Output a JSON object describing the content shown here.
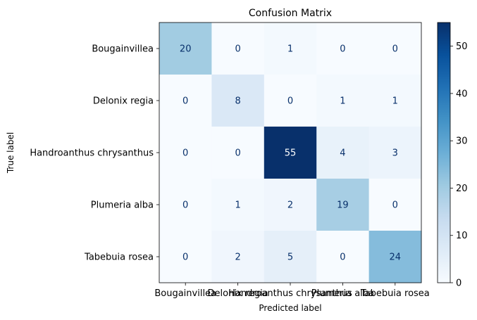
{
  "chart_data": {
    "type": "heatmap",
    "title": "Confusion Matrix",
    "xlabel": "Predicted label",
    "ylabel": "True label",
    "x_categories": [
      "Bougainvillea",
      "Delonix regia",
      "Handroanthus chrysanthus",
      "Plumeria alba",
      "Tabebuia rosea"
    ],
    "y_categories": [
      "Bougainvillea",
      "Delonix regia",
      "Handroanthus chrysanthus",
      "Plumeria alba",
      "Tabebuia rosea"
    ],
    "values": [
      [
        20,
        0,
        1,
        0,
        0
      ],
      [
        0,
        8,
        0,
        1,
        1
      ],
      [
        0,
        0,
        55,
        4,
        3
      ],
      [
        0,
        1,
        2,
        19,
        0
      ],
      [
        0,
        2,
        5,
        0,
        24
      ]
    ],
    "colormap": "Blues",
    "colorbar": {
      "min": 0,
      "max": 55,
      "ticks": [
        0,
        10,
        20,
        30,
        40,
        50
      ]
    },
    "grid": false
  }
}
